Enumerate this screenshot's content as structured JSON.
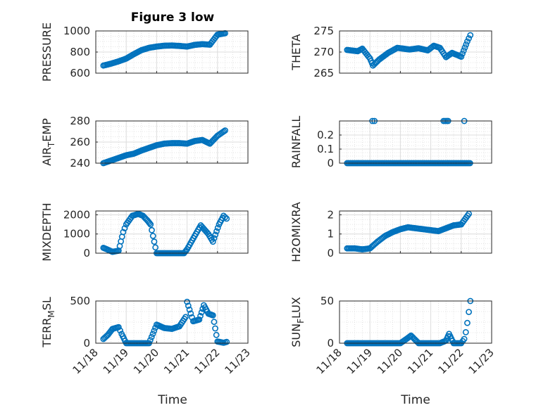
{
  "figure": {
    "title": "Figure 3 low"
  },
  "colors": {
    "marker": "#0072bd",
    "grid": "#dcdcdc",
    "axis": "#262626"
  },
  "x_tick_labels": [
    "11/18",
    "11/19",
    "11/20",
    "11/21",
    "11/22",
    "11/23"
  ],
  "chart_data": [
    {
      "type": "scatter",
      "title": "Figure 3 low",
      "ylabel": "PRESSURE",
      "xlabel": "",
      "xlim": [
        0,
        5
      ],
      "ylim": [
        600,
        1000
      ],
      "yticks": [
        600,
        800,
        1000
      ],
      "grid": true,
      "xs": [
        0.25,
        0.5,
        0.75,
        1.0,
        1.25,
        1.5,
        1.75,
        2.0,
        2.25,
        2.5,
        2.75,
        3.0,
        3.25,
        3.5,
        3.75,
        4.0,
        4.25
      ],
      "ys": [
        672,
        690,
        712,
        738,
        780,
        818,
        840,
        852,
        860,
        862,
        858,
        852,
        868,
        875,
        870,
        965,
        978
      ]
    },
    {
      "type": "scatter",
      "title": "",
      "ylabel": "THETA",
      "xlabel": "",
      "xlim": [
        0,
        5
      ],
      "ylim": [
        265,
        275
      ],
      "yticks": [
        265,
        270,
        275
      ],
      "grid": true,
      "xs": [
        0.25,
        0.6,
        0.75,
        1.0,
        1.1,
        1.3,
        1.6,
        1.9,
        2.3,
        2.6,
        2.9,
        3.1,
        3.3,
        3.5,
        3.7,
        4.0,
        4.2,
        4.3
      ],
      "ys": [
        270.5,
        270.2,
        270.8,
        268.5,
        266.8,
        268.2,
        269.8,
        271.0,
        270.6,
        270.9,
        270.4,
        271.5,
        271.0,
        268.8,
        269.8,
        268.9,
        272.5,
        274.0
      ]
    },
    {
      "type": "scatter",
      "title": "",
      "ylabel": "AIR_TEMP",
      "xlabel": "",
      "xlim": [
        0,
        5
      ],
      "ylim": [
        240,
        280
      ],
      "yticks": [
        240,
        260,
        280
      ],
      "grid": true,
      "xs": [
        0.25,
        0.5,
        0.75,
        1.0,
        1.25,
        1.5,
        1.75,
        2.0,
        2.25,
        2.5,
        2.75,
        3.0,
        3.25,
        3.5,
        3.75,
        4.0,
        4.25
      ],
      "ys": [
        240,
        242.5,
        245,
        247.5,
        249,
        252,
        254.5,
        257,
        258.5,
        259,
        259,
        258.5,
        261,
        262,
        258.5,
        266,
        271
      ]
    },
    {
      "type": "scatter",
      "title": "",
      "ylabel": "RAINFALL",
      "xlabel": "",
      "xlim": [
        0,
        5
      ],
      "ylim": [
        0,
        0.3
      ],
      "yticks": [
        0,
        0.1,
        0.2
      ],
      "grid": true,
      "xs": [
        0.25,
        1.0,
        1.05,
        1.2,
        2.0,
        3.0,
        3.4,
        3.6,
        4.2,
        4.3,
        1.08,
        1.15,
        3.42,
        3.47,
        3.52,
        3.57,
        4.1
      ],
      "ys": [
        0,
        0,
        0,
        0,
        0,
        0,
        0,
        0,
        0,
        0,
        0.3,
        0.3,
        0.3,
        0.3,
        0.3,
        0.3,
        0.3
      ]
    },
    {
      "type": "scatter",
      "title": "",
      "ylabel": "MIXDEPTH",
      "xlabel": "",
      "xlim": [
        0,
        5
      ],
      "ylim": [
        0,
        2200
      ],
      "yticks": [
        0,
        1000,
        2000
      ],
      "grid": true,
      "xs": [
        0.25,
        0.4,
        0.55,
        0.75,
        0.9,
        1.0,
        1.2,
        1.4,
        1.55,
        1.7,
        1.8,
        2.0,
        2.5,
        2.9,
        3.0,
        3.25,
        3.45,
        3.7,
        3.85,
        4.05,
        4.2,
        4.3
      ],
      "ys": [
        280,
        180,
        70,
        130,
        1100,
        1500,
        1950,
        2050,
        1950,
        1700,
        1500,
        0,
        0,
        0,
        200,
        900,
        1450,
        1000,
        600,
        1500,
        1950,
        1800
      ]
    },
    {
      "type": "scatter",
      "title": "",
      "ylabel": "H2OMIXRA",
      "xlabel": "",
      "xlim": [
        0,
        5
      ],
      "ylim": [
        0,
        2.2
      ],
      "yticks": [
        0,
        1,
        2
      ],
      "grid": true,
      "xs": [
        0.25,
        0.5,
        0.75,
        1.0,
        1.25,
        1.5,
        1.75,
        2.0,
        2.25,
        2.5,
        2.75,
        3.0,
        3.25,
        3.5,
        3.75,
        4.0,
        4.25
      ],
      "ys": [
        0.25,
        0.25,
        0.2,
        0.25,
        0.6,
        0.9,
        1.1,
        1.25,
        1.35,
        1.3,
        1.25,
        1.2,
        1.15,
        1.3,
        1.45,
        1.5,
        2.05
      ]
    },
    {
      "type": "scatter",
      "title": "",
      "ylabel": "TERR_MSL",
      "xlabel": "Time",
      "xlim": [
        0,
        5
      ],
      "ylim": [
        0,
        500
      ],
      "yticks": [
        0,
        500
      ],
      "grid": true,
      "xs": [
        0.25,
        0.4,
        0.55,
        0.75,
        0.85,
        1.0,
        1.25,
        1.5,
        1.75,
        2.0,
        2.25,
        2.5,
        2.75,
        2.95,
        3.0,
        3.2,
        3.4,
        3.55,
        3.7,
        3.85,
        4.0,
        4.2,
        4.3
      ],
      "ys": [
        50,
        100,
        170,
        190,
        110,
        0,
        0,
        0,
        0,
        220,
        180,
        170,
        200,
        310,
        490,
        260,
        280,
        450,
        350,
        330,
        20,
        5,
        15
      ]
    },
    {
      "type": "scatter",
      "title": "",
      "ylabel": "SUN_FLUX",
      "xlabel": "Time",
      "xlim": [
        0,
        5
      ],
      "ylim": [
        0,
        50
      ],
      "yticks": [
        0,
        50
      ],
      "grid": true,
      "xs": [
        0.25,
        0.75,
        1.25,
        1.75,
        2.0,
        2.2,
        2.35,
        2.6,
        2.9,
        3.3,
        3.5,
        3.6,
        3.75,
        4.0,
        4.1,
        4.15,
        4.2,
        4.25,
        4.3
      ],
      "ys": [
        0,
        0,
        0,
        0,
        0,
        5,
        9,
        0,
        0,
        0,
        3,
        11,
        0,
        0,
        5,
        13,
        24,
        37,
        50
      ]
    }
  ]
}
